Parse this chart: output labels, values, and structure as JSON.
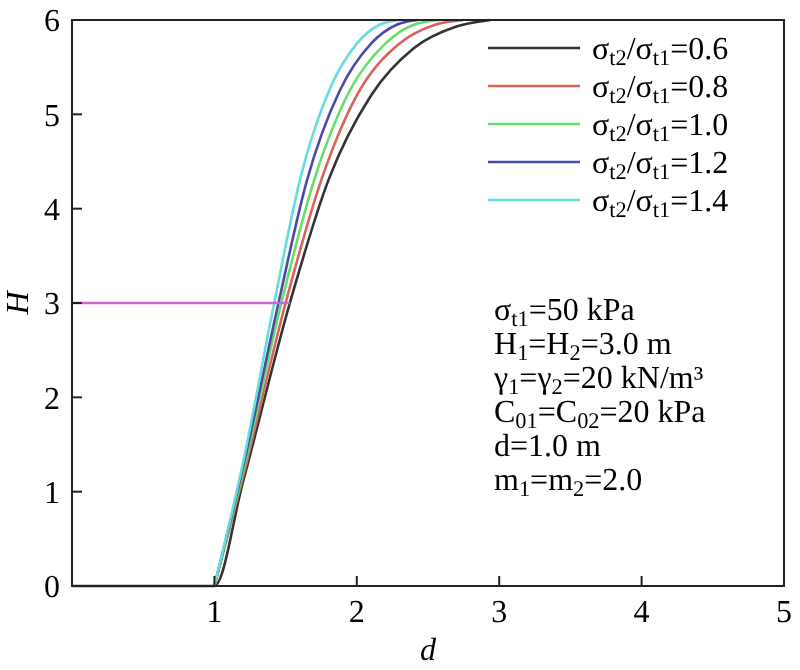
{
  "chart_data": {
    "type": "line",
    "xlabel": "d",
    "ylabel": "H",
    "xlim": [
      0,
      5
    ],
    "ylim": [
      0,
      6
    ],
    "xticks": [
      1,
      2,
      3,
      4,
      5
    ],
    "yticks": [
      0,
      1,
      2,
      3,
      4,
      5,
      6
    ],
    "grid": false,
    "legend": "top right",
    "line_style": "solid",
    "series": [
      {
        "name": "σ$_{t2}$/σ$_{t1}$=0.6",
        "color": "#333333",
        "x": [
          0,
          1,
          1.2,
          1.53,
          1.8,
          2.1,
          2.4,
          2.7,
          2.94
        ],
        "values": [
          0,
          0,
          1.1,
          3,
          4.3,
          5.2,
          5.7,
          5.93,
          6
        ]
      },
      {
        "name": "σ$_{t2}$/σ$_{t1}$=0.8",
        "color": "#d9625a",
        "x": [
          1,
          1.2,
          1.5,
          1.75,
          2.0,
          2.3,
          2.55,
          2.75
        ],
        "values": [
          0,
          1.15,
          3,
          4.3,
          5.2,
          5.75,
          5.95,
          6
        ]
      },
      {
        "name": "σ$_{t2}$/σ$_{t1}$=1.0",
        "color": "#66dd66",
        "x": [
          1,
          1.2,
          1.47,
          1.7,
          1.95,
          2.2,
          2.4,
          2.58
        ],
        "values": [
          0,
          1.2,
          3,
          4.3,
          5.25,
          5.75,
          5.95,
          6
        ]
      },
      {
        "name": "σ$_{t2}$/σ$_{t1}$=1.2",
        "color": "#4a4aa8",
        "x": [
          1,
          1.2,
          1.45,
          1.65,
          1.88,
          2.1,
          2.28,
          2.43
        ],
        "values": [
          0,
          1.25,
          3,
          4.3,
          5.25,
          5.75,
          5.95,
          6
        ]
      },
      {
        "name": "σ$_{t2}$/σ$_{t1}$=1.4",
        "color": "#66dddd",
        "x": [
          1,
          1.2,
          1.42,
          1.6,
          1.82,
          2.0,
          2.16,
          2.3
        ],
        "values": [
          0,
          1.3,
          3,
          4.3,
          5.3,
          5.75,
          5.95,
          6
        ]
      },
      {
        "color": "#cc66cc",
        "x": [
          0,
          1.53
        ],
        "values": [
          3,
          3
        ]
      }
    ],
    "annotations": [
      "σ$_{t1}$=50 kPa",
      "H$_{1}$=H$_{2}$=3.0 m",
      "γ$_{1}$=γ$_{2}$=20 kN/m³",
      "C$_{01}$=C$_{02}$=20 kPa",
      "d=1.0 m",
      "m$_{1}$=m$_{2}$=2.0"
    ]
  }
}
